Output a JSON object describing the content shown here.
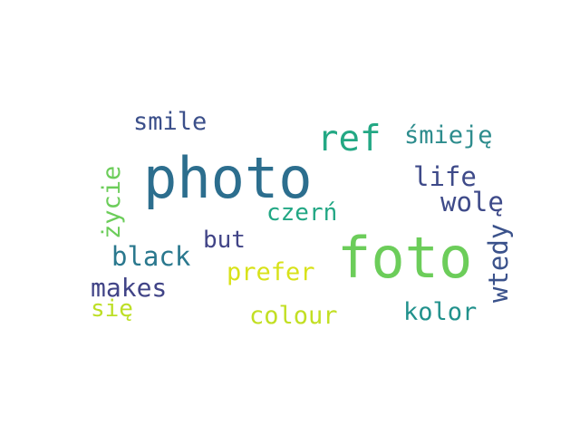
{
  "words": {
    "photo": {
      "text": "photo",
      "color": "#2c6e8e"
    },
    "foto": {
      "text": "foto",
      "color": "#6ccd5a"
    },
    "ref": {
      "text": "ref",
      "color": "#23a884"
    },
    "smile": {
      "text": "smile",
      "color": "#3b4f8a"
    },
    "smieje": {
      "text": "śmieję",
      "color": "#2d8c8d"
    },
    "zycie": {
      "text": "życie",
      "color": "#6ccd5a"
    },
    "life": {
      "text": "life",
      "color": "#3e4a89"
    },
    "wole": {
      "text": "wolę",
      "color": "#3e4a89"
    },
    "czern": {
      "text": "czerń",
      "color": "#22a784"
    },
    "wtedy": {
      "text": "wtedy",
      "color": "#3b528b"
    },
    "but": {
      "text": "but",
      "color": "#414487"
    },
    "black": {
      "text": "black",
      "color": "#2a788e"
    },
    "prefer": {
      "text": "prefer",
      "color": "#d8e219"
    },
    "makes": {
      "text": "makes",
      "color": "#414487"
    },
    "sie": {
      "text": "się",
      "color": "#bddf26"
    },
    "colour": {
      "text": "colour",
      "color": "#c2df23"
    },
    "kolor": {
      "text": "kolor",
      "color": "#21918c"
    }
  }
}
